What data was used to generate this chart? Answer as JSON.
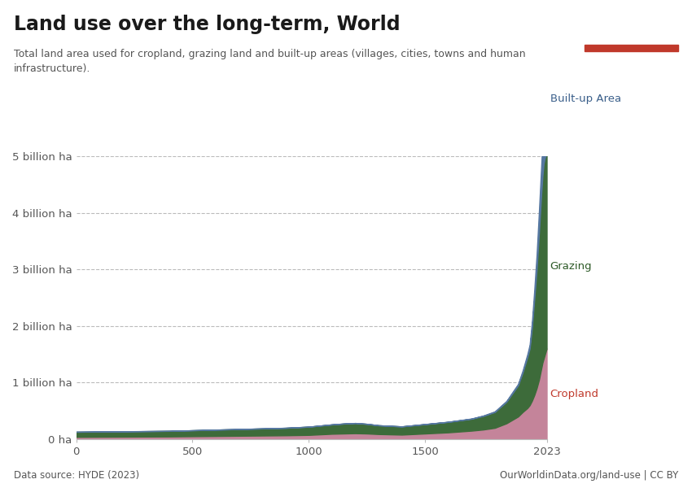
{
  "title": "Land use over the long-term, World",
  "subtitle": "Total land area used for cropland, grazing land and built-up areas (villages, cities, towns and human\ninfrastructure).",
  "datasource": "Data source: HYDE (2023)",
  "credit": "OurWorldinData.org/land-use | CC BY",
  "xlim": [
    0,
    2023
  ],
  "ylim": [
    0,
    5000000000.0
  ],
  "yticks": [
    0,
    1000000000.0,
    2000000000.0,
    3000000000.0,
    4000000000.0,
    5000000000.0
  ],
  "ytick_labels": [
    "0 ha",
    "1 billion ha",
    "2 billion ha",
    "3 billion ha",
    "4 billion ha",
    "5 billion ha"
  ],
  "xticks": [
    0,
    500,
    1000,
    1500,
    2023
  ],
  "xtick_labels": [
    "0",
    "500",
    "1000",
    "1500",
    "2023"
  ],
  "cropland_color": "#c4849a",
  "grazing_color": "#3d6b3a",
  "builtup_color": "#5577a0",
  "background_color": "#ffffff",
  "logo_bg_color": "#1d3557",
  "logo_text_color": "#ffffff",
  "logo_red_color": "#c0392b",
  "title_color": "#1a1a1a",
  "subtitle_color": "#555555",
  "label_cropland_color": "#c0392b",
  "label_grazing_color": "#2d5a27",
  "label_builtup_color": "#3a5f8a",
  "years": [
    0,
    100,
    200,
    300,
    400,
    500,
    600,
    700,
    800,
    900,
    1000,
    1050,
    1100,
    1150,
    1200,
    1250,
    1300,
    1350,
    1400,
    1450,
    1500,
    1600,
    1700,
    1750,
    1800,
    1850,
    1900,
    1920,
    1940,
    1950,
    1960,
    1970,
    1980,
    1990,
    2000,
    2005,
    2010,
    2015,
    2023
  ],
  "cropland_values": [
    40000000.0,
    42000000.0,
    44000000.0,
    46000000.0,
    48000000.0,
    52000000.0,
    56000000.0,
    60000000.0,
    64000000.0,
    68000000.0,
    75000000.0,
    85000000.0,
    95000000.0,
    100000000.0,
    105000000.0,
    100000000.0,
    90000000.0,
    85000000.0,
    80000000.0,
    90000000.0,
    100000000.0,
    120000000.0,
    150000000.0,
    170000000.0,
    200000000.0,
    280000000.0,
    400000000.0,
    480000000.0,
    550000000.0,
    600000000.0,
    680000000.0,
    780000000.0,
    900000000.0,
    1050000000.0,
    1250000000.0,
    1350000000.0,
    1420000000.0,
    1490000000.0,
    1600000000.0
  ],
  "grazing_values": [
    90000000.0,
    92000000.0,
    94000000.0,
    96000000.0,
    98000000.0,
    105000000.0,
    112000000.0,
    118000000.0,
    125000000.0,
    132000000.0,
    145000000.0,
    155000000.0,
    165000000.0,
    175000000.0,
    180000000.0,
    170000000.0,
    155000000.0,
    150000000.0,
    145000000.0,
    155000000.0,
    165000000.0,
    185000000.0,
    210000000.0,
    240000000.0,
    280000000.0,
    380000000.0,
    550000000.0,
    700000000.0,
    900000000.0,
    1000000000.0,
    1300000000.0,
    1700000000.0,
    2100000000.0,
    2600000000.0,
    3100000000.0,
    3300000000.0,
    3450000000.0,
    3480000000.0,
    3450000000.0
  ],
  "builtup_values": [
    1000000.0,
    1000000.0,
    1000000.0,
    1000000.0,
    1000000.0,
    1000000.0,
    1000000.0,
    1000000.0,
    1000000.0,
    1000000.0,
    1000000.0,
    1000000.0,
    1000000.0,
    1000000.0,
    1000000.0,
    1000000.0,
    1000000.0,
    1000000.0,
    1000000.0,
    1000000.0,
    2000000.0,
    3000000.0,
    5000000.0,
    7000000.0,
    10000000.0,
    15000000.0,
    25000000.0,
    35000000.0,
    50000000.0,
    70000000.0,
    100000000.0,
    160000000.0,
    260000000.0,
    380000000.0,
    500000000.0,
    600000000.0,
    680000000.0,
    750000000.0,
    820000000.0
  ]
}
